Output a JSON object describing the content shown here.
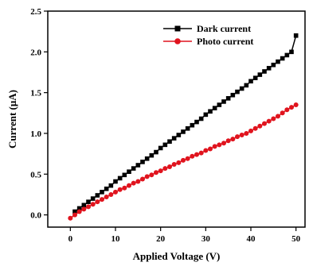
{
  "chart_data": {
    "type": "scatter",
    "title": "",
    "xlabel": "Applied Voltage (V)",
    "ylabel": "Current (μA)",
    "xlim": [
      -5,
      52
    ],
    "ylim": [
      -0.15,
      2.5
    ],
    "xticks": [
      0,
      10,
      20,
      30,
      40,
      50
    ],
    "yticks": [
      0.0,
      0.5,
      1.0,
      1.5,
      2.0,
      2.5
    ],
    "xtick_labels": [
      "0",
      "10",
      "20",
      "30",
      "40",
      "50"
    ],
    "ytick_labels": [
      "0.0",
      "0.5",
      "1.0",
      "1.5",
      "2.0",
      "2.5"
    ],
    "legend_position": "top-right",
    "grid": false,
    "series": [
      {
        "name": "Dark current",
        "color": "#000000",
        "marker": "square",
        "x": [
          1,
          2,
          3,
          4,
          5,
          6,
          7,
          8,
          9,
          10,
          11,
          12,
          13,
          14,
          15,
          16,
          17,
          18,
          19,
          20,
          21,
          22,
          23,
          24,
          25,
          26,
          27,
          28,
          29,
          30,
          31,
          32,
          33,
          34,
          35,
          36,
          37,
          38,
          39,
          40,
          41,
          42,
          43,
          44,
          45,
          46,
          47,
          48,
          49,
          50
        ],
        "y": [
          0.04,
          0.08,
          0.12,
          0.16,
          0.2,
          0.24,
          0.28,
          0.32,
          0.36,
          0.41,
          0.45,
          0.49,
          0.53,
          0.57,
          0.61,
          0.65,
          0.69,
          0.73,
          0.77,
          0.82,
          0.86,
          0.9,
          0.94,
          0.98,
          1.02,
          1.06,
          1.1,
          1.14,
          1.18,
          1.23,
          1.27,
          1.31,
          1.35,
          1.39,
          1.43,
          1.47,
          1.51,
          1.55,
          1.59,
          1.64,
          1.68,
          1.72,
          1.76,
          1.8,
          1.84,
          1.88,
          1.92,
          1.96,
          2.0,
          2.2
        ]
      },
      {
        "name": "Photo current",
        "color": "#e0141e",
        "marker": "circle",
        "x": [
          0,
          1,
          2,
          3,
          4,
          5,
          6,
          7,
          8,
          9,
          10,
          11,
          12,
          13,
          14,
          15,
          16,
          17,
          18,
          19,
          20,
          21,
          22,
          23,
          24,
          25,
          26,
          27,
          28,
          29,
          30,
          31,
          32,
          33,
          34,
          35,
          36,
          37,
          38,
          39,
          40,
          41,
          42,
          43,
          44,
          45,
          46,
          47,
          48,
          49,
          50
        ],
        "y": [
          -0.04,
          0.0,
          0.04,
          0.07,
          0.1,
          0.13,
          0.16,
          0.19,
          0.22,
          0.25,
          0.28,
          0.31,
          0.33,
          0.36,
          0.39,
          0.41,
          0.44,
          0.47,
          0.49,
          0.52,
          0.54,
          0.57,
          0.59,
          0.62,
          0.64,
          0.67,
          0.69,
          0.72,
          0.74,
          0.76,
          0.79,
          0.81,
          0.84,
          0.86,
          0.88,
          0.91,
          0.93,
          0.96,
          0.98,
          1.0,
          1.03,
          1.06,
          1.09,
          1.12,
          1.15,
          1.18,
          1.21,
          1.25,
          1.29,
          1.32,
          1.35
        ]
      }
    ]
  }
}
